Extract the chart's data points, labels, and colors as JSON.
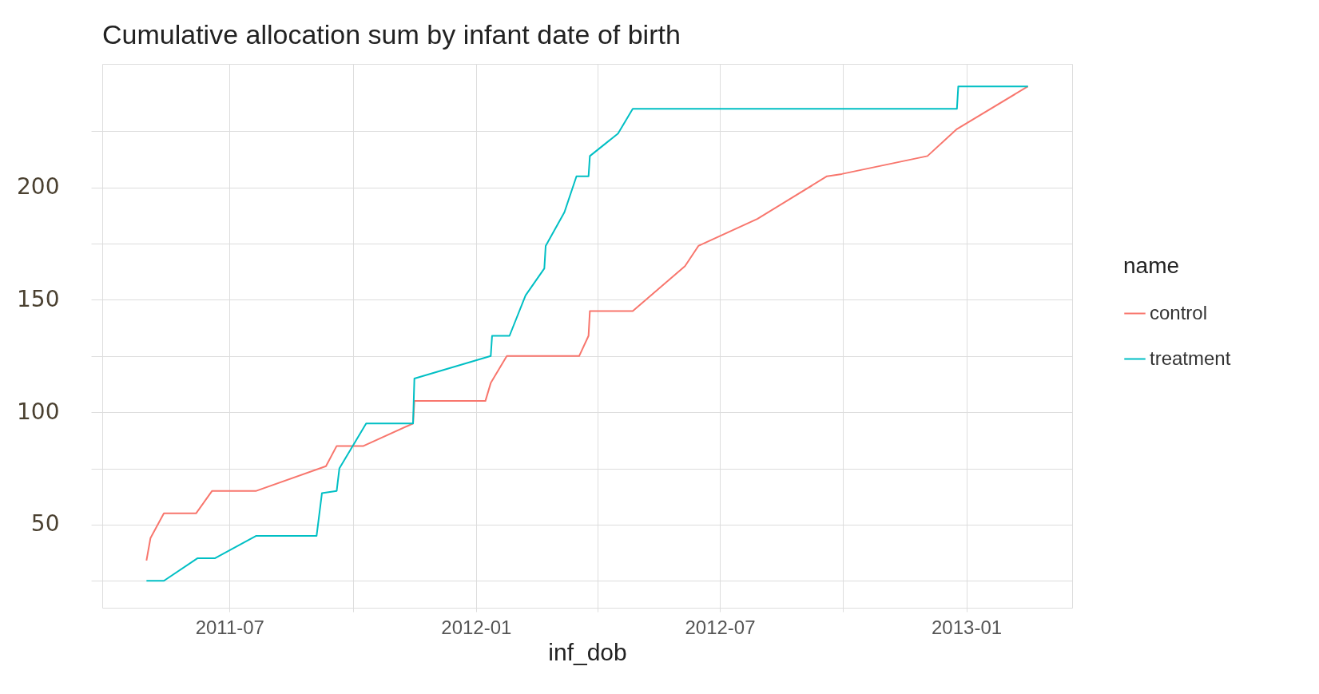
{
  "chart_data": {
    "type": "line",
    "title": "Cumulative allocation sum by infant date of birth",
    "xlabel": "inf_dob",
    "legend_title": "name",
    "legend": "right",
    "grid": true,
    "line_style": "solid",
    "marker": "none",
    "xlim": [
      "2011-03-28",
      "2013-03-21"
    ],
    "ylim": [
      13,
      255
    ],
    "xticks": [
      {
        "value": "2011-07",
        "label": "2011-07"
      },
      {
        "value": "2011-10",
        "label": null
      },
      {
        "value": "2012-01",
        "label": "2012-01"
      },
      {
        "value": "2012-04",
        "label": null
      },
      {
        "value": "2012-07",
        "label": "2012-07"
      },
      {
        "value": "2012-10",
        "label": null
      },
      {
        "value": "2013-01",
        "label": "2013-01"
      }
    ],
    "yticks": [
      {
        "value": 25,
        "label": null
      },
      50,
      {
        "value": 75,
        "label": null
      },
      100,
      {
        "value": 125,
        "label": null
      },
      150,
      {
        "value": 175,
        "label": null
      },
      200,
      {
        "value": 225,
        "label": null
      }
    ],
    "series": [
      {
        "name": "control",
        "color": "#f8766d",
        "x": [
          "2011-04-30",
          "2011-05-03",
          "2011-05-13",
          "2011-06-06",
          "2011-06-18",
          "2011-07-21",
          "2011-09-11",
          "2011-09-19",
          "2011-10-09",
          "2011-11-15",
          "2011-11-16",
          "2012-01-08",
          "2012-01-12",
          "2012-01-24",
          "2012-03-18",
          "2012-03-25",
          "2012-03-26",
          "2012-04-27",
          "2012-06-05",
          "2012-06-15",
          "2012-07-29",
          "2012-09-19",
          "2012-09-30",
          "2012-12-03",
          "2012-12-25",
          "2013-02-16"
        ],
        "values": [
          34,
          44,
          55,
          55,
          65,
          65,
          76,
          85,
          85,
          95,
          105,
          105,
          113,
          125,
          125,
          134,
          145,
          145,
          165,
          174,
          186,
          205,
          206,
          214,
          226,
          245
        ]
      },
      {
        "name": "treatment",
        "color": "#00bfc4",
        "x": [
          "2011-04-30",
          "2011-05-13",
          "2011-06-07",
          "2011-06-20",
          "2011-07-21",
          "2011-09-04",
          "2011-09-08",
          "2011-09-19",
          "2011-09-21",
          "2011-10-11",
          "2011-11-15",
          "2011-11-16",
          "2012-01-12",
          "2012-01-13",
          "2012-01-26",
          "2012-02-07",
          "2012-02-21",
          "2012-02-22",
          "2012-03-07",
          "2012-03-16",
          "2012-03-25",
          "2012-03-26",
          "2012-04-16",
          "2012-04-27",
          "2012-12-25",
          "2012-12-26",
          "2013-02-16"
        ],
        "values": [
          25,
          25,
          35,
          35,
          45,
          45,
          64,
          65,
          75,
          95,
          95,
          115,
          125,
          134,
          134,
          152,
          164,
          174,
          189,
          205,
          205,
          214,
          224,
          235,
          235,
          245,
          245
        ]
      }
    ]
  }
}
